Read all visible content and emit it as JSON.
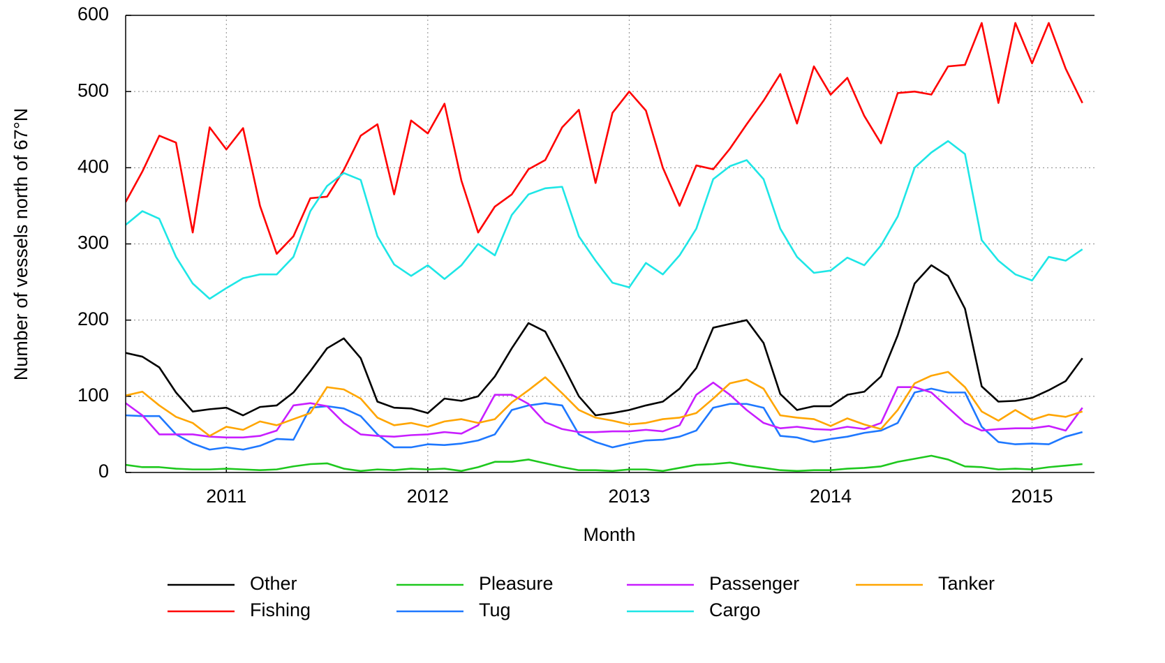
{
  "chart_data": {
    "type": "line",
    "xlabel": "Month",
    "ylabel": "Number of vessels north of 67°N",
    "x": [
      2010.5,
      2010.583,
      2010.667,
      2010.75,
      2010.833,
      2010.917,
      2011,
      2011.083,
      2011.167,
      2011.25,
      2011.333,
      2011.417,
      2011.5,
      2011.583,
      2011.667,
      2011.75,
      2011.833,
      2011.917,
      2012,
      2012.083,
      2012.167,
      2012.25,
      2012.333,
      2012.417,
      2012.5,
      2012.583,
      2012.667,
      2012.75,
      2012.833,
      2012.917,
      2013,
      2013.083,
      2013.167,
      2013.25,
      2013.333,
      2013.417,
      2013.5,
      2013.583,
      2013.667,
      2013.75,
      2013.833,
      2013.917,
      2014,
      2014.083,
      2014.167,
      2014.25,
      2014.333,
      2014.417,
      2014.5,
      2014.583,
      2014.667,
      2014.75,
      2014.833,
      2014.917,
      2015,
      2015.083,
      2015.167,
      2015.25
    ],
    "series": [
      {
        "name": "Other",
        "color": "#000000",
        "values": [
          157,
          152,
          138,
          105,
          80,
          83,
          85,
          75,
          86,
          88,
          105,
          133,
          163,
          176,
          150,
          93,
          85,
          84,
          78,
          97,
          94,
          100,
          126,
          163,
          196,
          185,
          143,
          100,
          75,
          78,
          82,
          88,
          93,
          110,
          137,
          190,
          195,
          200,
          170,
          103,
          82,
          87,
          87,
          102,
          106,
          126,
          180,
          248,
          272,
          258,
          215,
          113,
          93,
          94,
          98,
          108,
          120,
          150
        ]
      },
      {
        "name": "Fishing",
        "color": "#ff0000",
        "values": [
          355,
          395,
          442,
          433,
          315,
          453,
          424,
          452,
          350,
          287,
          310,
          360,
          362,
          397,
          442,
          457,
          365,
          462,
          445,
          484,
          383,
          315,
          349,
          365,
          398,
          410,
          453,
          476,
          380,
          472,
          500,
          475,
          400,
          350,
          403,
          398,
          425,
          457,
          488,
          523,
          458,
          533,
          496,
          518,
          468,
          432,
          498,
          500,
          496,
          533,
          535,
          590,
          485,
          590,
          537,
          590,
          530,
          485
        ]
      },
      {
        "name": "Pleasure",
        "color": "#1ec81e",
        "values": [
          10,
          7,
          7,
          5,
          4,
          4,
          5,
          4,
          3,
          4,
          8,
          11,
          12,
          5,
          2,
          4,
          3,
          5,
          4,
          5,
          2,
          7,
          14,
          14,
          17,
          12,
          7,
          3,
          3,
          2,
          4,
          4,
          2,
          6,
          10,
          11,
          13,
          9,
          6,
          3,
          2,
          3,
          3,
          5,
          6,
          8,
          14,
          18,
          22,
          17,
          8,
          7,
          4,
          5,
          4,
          7,
          9,
          11
        ]
      },
      {
        "name": "Tug",
        "color": "#1e78ff",
        "values": [
          75,
          74,
          74,
          50,
          38,
          30,
          33,
          30,
          35,
          44,
          43,
          85,
          87,
          84,
          74,
          50,
          33,
          33,
          37,
          36,
          38,
          42,
          50,
          82,
          88,
          91,
          88,
          50,
          40,
          33,
          38,
          42,
          43,
          47,
          55,
          85,
          90,
          90,
          85,
          48,
          46,
          40,
          44,
          47,
          52,
          55,
          65,
          105,
          110,
          105,
          105,
          60,
          40,
          37,
          38,
          37,
          47,
          53
        ]
      },
      {
        "name": "Passenger",
        "color": "#c81eff",
        "values": [
          91,
          75,
          50,
          50,
          50,
          47,
          46,
          46,
          48,
          55,
          88,
          91,
          87,
          65,
          50,
          48,
          47,
          49,
          50,
          53,
          51,
          62,
          102,
          102,
          90,
          66,
          57,
          53,
          53,
          54,
          54,
          56,
          54,
          62,
          102,
          118,
          102,
          82,
          65,
          58,
          60,
          57,
          56,
          60,
          57,
          65,
          112,
          112,
          105,
          85,
          65,
          55,
          57,
          58,
          58,
          61,
          55,
          85
        ]
      },
      {
        "name": "Cargo",
        "color": "#1ee6e6",
        "values": [
          325,
          343,
          333,
          283,
          248,
          228,
          242,
          255,
          260,
          260,
          283,
          343,
          376,
          393,
          384,
          310,
          273,
          258,
          272,
          254,
          272,
          300,
          285,
          338,
          365,
          373,
          375,
          310,
          278,
          249,
          243,
          275,
          260,
          285,
          320,
          385,
          402,
          410,
          385,
          320,
          283,
          262,
          265,
          282,
          272,
          298,
          336,
          400,
          420,
          435,
          418,
          305,
          278,
          260,
          252,
          283,
          278,
          293
        ]
      },
      {
        "name": "Tanker",
        "color": "#ffa500",
        "values": [
          101,
          106,
          88,
          73,
          65,
          48,
          60,
          56,
          67,
          62,
          70,
          78,
          112,
          109,
          97,
          72,
          62,
          65,
          60,
          67,
          70,
          65,
          70,
          92,
          108,
          125,
          104,
          82,
          72,
          68,
          63,
          65,
          70,
          72,
          78,
          97,
          117,
          122,
          110,
          75,
          72,
          70,
          61,
          71,
          63,
          57,
          82,
          117,
          127,
          132,
          112,
          80,
          68,
          82,
          69,
          76,
          73,
          80
        ]
      }
    ],
    "xlim": [
      2010.5,
      2015.31
    ],
    "xticks": [
      2011,
      2012,
      2013,
      2014,
      2015
    ],
    "ylim": [
      0,
      600
    ],
    "yticks": [
      0,
      100,
      200,
      300,
      400,
      500,
      600
    ],
    "grid": true,
    "legend": "bottom"
  }
}
